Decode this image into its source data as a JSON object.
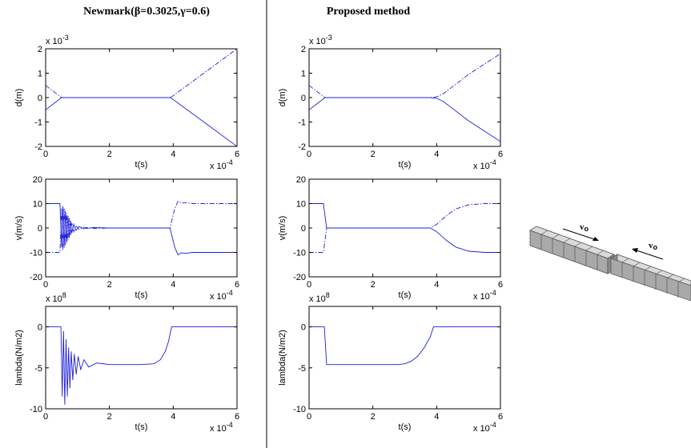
{
  "titles": {
    "left": "Newmark(β=0.3025,γ=0.6)",
    "right": "Proposed method"
  },
  "illustration": {
    "v1": "v",
    "v1_sub": "o",
    "v2": "v",
    "v2_sub": "o"
  },
  "chart_data": [
    {
      "id": "nm-d",
      "type": "line",
      "xlabel": "t(s)",
      "ylabel": "d(m)",
      "xlim": [
        0,
        6
      ],
      "ylim": [
        -2,
        2
      ],
      "xticks": [
        0,
        2,
        4,
        6
      ],
      "yticks": [
        -2,
        -1,
        0,
        1,
        2
      ],
      "x_multiplier": "x 10",
      "x_exp": "-4",
      "y_multiplier": "x 10",
      "y_exp": "-3",
      "y_mult_pos": "top",
      "series": [
        {
          "style": "solid",
          "x": [
            0,
            0.5,
            0.6,
            3.9,
            4.0,
            6.0
          ],
          "y": [
            -0.5,
            0.0,
            0.0,
            0.0,
            -0.08,
            -2.0
          ]
        },
        {
          "style": "dashdot",
          "x": [
            0,
            0.5,
            0.6,
            3.9,
            4.0,
            6.0
          ],
          "y": [
            0.5,
            0.0,
            0.0,
            0.0,
            0.08,
            2.0
          ]
        }
      ]
    },
    {
      "id": "nm-v",
      "type": "line",
      "xlabel": "t(s)",
      "ylabel": "v(m/s)",
      "xlim": [
        0,
        6
      ],
      "ylim": [
        -20,
        20
      ],
      "xticks": [
        0,
        2,
        4,
        6
      ],
      "yticks": [
        -20,
        -10,
        0,
        10,
        20
      ],
      "x_multiplier": "x 10",
      "x_exp": "-4",
      "series": [
        {
          "style": "solid",
          "x": [
            0,
            0.45,
            0.5,
            0.54,
            0.58,
            0.62,
            0.66,
            0.7,
            0.74,
            0.78,
            0.82,
            0.88,
            0.95,
            1.05,
            1.2,
            1.5,
            2.0,
            3.9,
            4.05,
            4.15,
            4.25,
            4.4,
            4.6,
            6.0
          ],
          "y": [
            10,
            10,
            -8,
            9,
            -8,
            7,
            -6,
            5,
            -4,
            3,
            -2,
            1.5,
            -1,
            0.6,
            -0.3,
            0.2,
            0,
            0,
            -8,
            -11,
            -10.2,
            -10.4,
            -10,
            -10
          ]
        },
        {
          "style": "dashdot",
          "x": [
            0,
            0.45,
            0.5,
            0.54,
            0.58,
            0.62,
            0.66,
            0.7,
            0.74,
            0.78,
            0.82,
            0.88,
            0.95,
            1.05,
            1.2,
            1.5,
            2.0,
            3.9,
            4.05,
            4.15,
            4.25,
            4.4,
            4.6,
            6.0
          ],
          "y": [
            -10,
            -10,
            8,
            -9,
            8,
            -7,
            6,
            -5,
            4,
            -3,
            2,
            -1.5,
            1,
            -0.6,
            0.3,
            -0.2,
            0,
            0,
            8,
            11,
            10.2,
            10.4,
            10,
            10
          ]
        }
      ]
    },
    {
      "id": "nm-l",
      "type": "line",
      "xlabel": "t(s)",
      "ylabel": "lambda(N/m2)",
      "xlim": [
        0,
        6
      ],
      "ylim": [
        -10,
        2.5
      ],
      "xticks": [
        0,
        2,
        4,
        6
      ],
      "yticks": [
        -10,
        -5,
        0
      ],
      "x_multiplier": "x 10",
      "x_exp": "-4",
      "y_multiplier": "x 10",
      "y_exp": "8",
      "y_mult_pos": "top",
      "series": [
        {
          "style": "solid",
          "x": [
            0,
            0.48,
            0.52,
            0.56,
            0.6,
            0.64,
            0.68,
            0.72,
            0.76,
            0.8,
            0.85,
            0.9,
            0.96,
            1.02,
            1.1,
            1.2,
            1.35,
            1.6,
            2.0,
            3.0,
            3.4,
            3.6,
            3.75,
            3.85,
            3.95,
            6.0
          ],
          "y": [
            0,
            0,
            -8.5,
            -0.5,
            -9.5,
            -1.5,
            -8.5,
            -2.5,
            -7.5,
            -3,
            -6.5,
            -3.3,
            -5.8,
            -3.6,
            -5.2,
            -4,
            -4.9,
            -4.4,
            -4.6,
            -4.6,
            -4.5,
            -4.0,
            -3.0,
            -1.8,
            0,
            0
          ]
        }
      ]
    },
    {
      "id": "pm-d",
      "type": "line",
      "xlabel": "t(s)",
      "ylabel": "d(m)",
      "xlim": [
        0,
        6
      ],
      "ylim": [
        -2,
        2
      ],
      "xticks": [
        0,
        2,
        4,
        6
      ],
      "yticks": [
        -2,
        -1,
        0,
        1,
        2
      ],
      "x_multiplier": "x 10",
      "x_exp": "-4",
      "y_multiplier": "x 10",
      "y_exp": "-3",
      "y_mult_pos": "top",
      "series": [
        {
          "style": "solid",
          "x": [
            0,
            0.5,
            0.6,
            3.8,
            4.0,
            4.2,
            4.5,
            5.0,
            6.0
          ],
          "y": [
            -0.5,
            0.0,
            0.0,
            0.0,
            -0.03,
            -0.15,
            -0.45,
            -0.95,
            -1.8
          ]
        },
        {
          "style": "dashdot",
          "x": [
            0,
            0.5,
            0.6,
            3.8,
            4.0,
            4.2,
            4.5,
            5.0,
            6.0
          ],
          "y": [
            0.5,
            0.0,
            0.0,
            0.0,
            0.03,
            0.15,
            0.45,
            0.95,
            1.8
          ]
        }
      ]
    },
    {
      "id": "pm-v",
      "type": "line",
      "xlabel": "t(s)",
      "ylabel": "v(m/s)",
      "xlim": [
        0,
        6
      ],
      "ylim": [
        -20,
        20
      ],
      "xticks": [
        0,
        2,
        4,
        6
      ],
      "yticks": [
        -20,
        -10,
        0,
        10,
        20
      ],
      "x_multiplier": "x 10",
      "x_exp": "-4",
      "series": [
        {
          "style": "solid",
          "x": [
            0,
            0.45,
            0.55,
            0.6,
            3.8,
            4.0,
            4.3,
            4.6,
            5.0,
            5.5,
            6.0
          ],
          "y": [
            10,
            10,
            0,
            0,
            0,
            -1.5,
            -5,
            -7.8,
            -9.5,
            -10,
            -10
          ]
        },
        {
          "style": "dashdot",
          "x": [
            0,
            0.45,
            0.55,
            0.6,
            3.8,
            4.0,
            4.3,
            4.6,
            5.0,
            5.5,
            6.0
          ],
          "y": [
            -10,
            -10,
            0,
            0,
            0,
            1.5,
            5,
            7.8,
            9.5,
            10,
            10
          ]
        }
      ]
    },
    {
      "id": "pm-l",
      "type": "line",
      "xlabel": "t(s)",
      "ylabel": "lambda(N/m2)",
      "xlim": [
        0,
        6
      ],
      "ylim": [
        -10,
        2.5
      ],
      "xticks": [
        0,
        2,
        4,
        6
      ],
      "yticks": [
        -10,
        -5,
        0
      ],
      "x_multiplier": "x 10",
      "x_exp": "-4",
      "y_multiplier": "x 10",
      "y_exp": "8",
      "y_mult_pos": "top",
      "series": [
        {
          "style": "solid",
          "x": [
            0,
            0.48,
            0.55,
            2.8,
            3.0,
            3.2,
            3.4,
            3.6,
            3.8,
            3.9,
            6.0
          ],
          "y": [
            0,
            0,
            -4.6,
            -4.6,
            -4.5,
            -4.2,
            -3.6,
            -2.6,
            -1.2,
            0,
            0
          ]
        }
      ]
    }
  ]
}
